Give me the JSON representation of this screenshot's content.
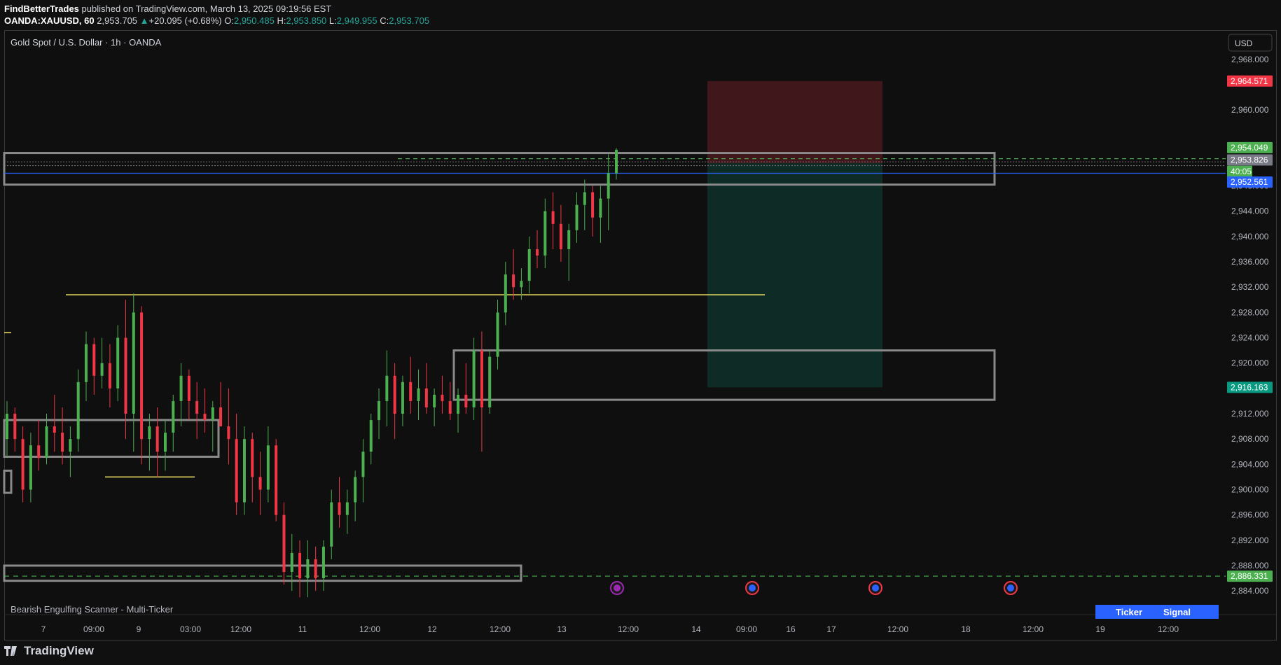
{
  "header": {
    "author": "FindBetterTrades",
    "published": " published on TradingView.com, March 13, 2025 09:19:56 EST",
    "symbol": "OANDA:XAUUSD, 60",
    "last": "2,953.705",
    "change": "+20.095 (+0.68%)",
    "o_label": "O:",
    "o": "2,950.485",
    "h_label": "H:",
    "h": "2,953.850",
    "l_label": "L:",
    "l": "2,949.955",
    "c_label": "C:",
    "c": "2,953.705"
  },
  "chart_data": {
    "type": "candlestick",
    "title": "Gold Spot / U.S. Dollar · 1h · OANDA",
    "currency": "USD",
    "y_ticks": [
      "2,968.000",
      "2,960.000",
      "2,948.000",
      "2,944.000",
      "2,940.000",
      "2,936.000",
      "2,932.000",
      "2,928.000",
      "2,924.000",
      "2,920.000",
      "2,912.000",
      "2,908.000",
      "2,904.000",
      "2,900.000",
      "2,896.000",
      "2,892.000",
      "2,888.000",
      "2,884.000"
    ],
    "ylim": [
      2882.8,
      2972.4
    ],
    "x_ticks": [
      "7",
      "09:00",
      "9",
      "03:00",
      "12:00",
      "11",
      "12:00",
      "12",
      "12:00",
      "13",
      "12:00",
      "14",
      "09:00",
      "16",
      "17",
      "12:00",
      "18",
      "12:00",
      "19",
      "12:00"
    ],
    "price_badges": [
      {
        "text": "2,964.571",
        "color": "#f23645",
        "price": 2964.571
      },
      {
        "text": "2,954.049",
        "color": "#4caf50",
        "price": 2954.049
      },
      {
        "text": "2,953.826",
        "color": "#787b86",
        "price": 2952.1
      },
      {
        "text": "40:05",
        "color": "#4caf50",
        "price": 2950.3
      },
      {
        "text": "2,952.561",
        "color": "#2962ff",
        "price": 2948.6
      },
      {
        "text": "2,916.163",
        "color": "#089981",
        "price": 2916.163
      },
      {
        "text": "2,886.331",
        "color": "#4caf50",
        "price": 2886.331
      }
    ],
    "indicator": {
      "name": "Bearish Engulfing Scanner - Multi-Ticker",
      "table_headers": [
        "Ticker",
        "Signal"
      ]
    },
    "colors": {
      "up": "#4caf50",
      "down": "#f23645",
      "box": "#8a8a8a",
      "level": "#f5e663",
      "price_line": "#2962ff"
    },
    "candles_ohlc": [
      [
        2908,
        2914,
        2905,
        2912
      ],
      [
        2912,
        2913,
        2906,
        2908
      ],
      [
        2908,
        2910,
        2898,
        2900
      ],
      [
        2900,
        2909,
        2898,
        2907
      ],
      [
        2907,
        2911,
        2903,
        2905
      ],
      [
        2905,
        2912,
        2904,
        2910
      ],
      [
        2910,
        2915,
        2906,
        2909
      ],
      [
        2909,
        2913,
        2904,
        2906
      ],
      [
        2906,
        2910,
        2902,
        2908
      ],
      [
        2908,
        2919,
        2906,
        2917
      ],
      [
        2917,
        2925,
        2914,
        2923
      ],
      [
        2923,
        2924,
        2915,
        2918
      ],
      [
        2918,
        2924,
        2916,
        2920
      ],
      [
        2920,
        2923,
        2913,
        2916
      ],
      [
        2916,
        2926,
        2914,
        2924
      ],
      [
        2924,
        2930,
        2908,
        2912
      ],
      [
        2912,
        2931,
        2906,
        2928
      ],
      [
        2928,
        2929,
        2904,
        2908
      ],
      [
        2908,
        2912,
        2903,
        2910
      ],
      [
        2910,
        2913,
        2902,
        2906
      ],
      [
        2906,
        2911,
        2903,
        2909
      ],
      [
        2909,
        2915,
        2906,
        2914
      ],
      [
        2914,
        2920,
        2910,
        2918
      ],
      [
        2918,
        2919,
        2911,
        2914
      ],
      [
        2914,
        2917,
        2908,
        2912
      ],
      [
        2912,
        2916,
        2909,
        2911
      ],
      [
        2911,
        2914,
        2906,
        2913
      ],
      [
        2913,
        2917,
        2910,
        2910
      ],
      [
        2910,
        2916,
        2904,
        2908
      ],
      [
        2908,
        2912,
        2896,
        2898
      ],
      [
        2898,
        2910,
        2896,
        2908
      ],
      [
        2908,
        2909,
        2898,
        2902
      ],
      [
        2902,
        2906,
        2896,
        2900
      ],
      [
        2900,
        2910,
        2898,
        2907
      ],
      [
        2907,
        2908,
        2895,
        2896
      ],
      [
        2896,
        2898,
        2885,
        2887
      ],
      [
        2887,
        2893,
        2884,
        2890
      ],
      [
        2890,
        2892,
        2883,
        2886
      ],
      [
        2886,
        2892,
        2883,
        2889
      ],
      [
        2889,
        2891,
        2884,
        2886
      ],
      [
        2886,
        2892,
        2884,
        2891
      ],
      [
        2891,
        2900,
        2889,
        2898
      ],
      [
        2898,
        2902,
        2894,
        2896
      ],
      [
        2896,
        2900,
        2893,
        2898
      ],
      [
        2898,
        2903,
        2895,
        2902
      ],
      [
        2902,
        2908,
        2898,
        2906
      ],
      [
        2906,
        2912,
        2904,
        2911
      ],
      [
        2911,
        2916,
        2908,
        2914
      ],
      [
        2914,
        2922,
        2910,
        2918
      ],
      [
        2918,
        2920,
        2908,
        2912
      ],
      [
        2912,
        2918,
        2910,
        2917
      ],
      [
        2917,
        2921,
        2912,
        2914
      ],
      [
        2914,
        2919,
        2911,
        2916
      ],
      [
        2916,
        2920,
        2912,
        2913
      ],
      [
        2913,
        2916,
        2910,
        2915
      ],
      [
        2915,
        2918,
        2912,
        2914
      ],
      [
        2914,
        2917,
        2911,
        2912
      ],
      [
        2912,
        2916,
        2909,
        2915
      ],
      [
        2915,
        2920,
        2912,
        2913
      ],
      [
        2913,
        2924,
        2911,
        2922
      ],
      [
        2922,
        2925,
        2906,
        2913
      ],
      [
        2913,
        2922,
        2912,
        2921
      ],
      [
        2921,
        2930,
        2919,
        2928
      ],
      [
        2928,
        2936,
        2926,
        2934
      ],
      [
        2934,
        2938,
        2930,
        2932
      ],
      [
        2932,
        2935,
        2930,
        2933
      ],
      [
        2933,
        2940,
        2931,
        2938
      ],
      [
        2938,
        2941,
        2935,
        2937
      ],
      [
        2937,
        2946,
        2935,
        2944
      ],
      [
        2944,
        2947,
        2938,
        2942
      ],
      [
        2942,
        2945,
        2936,
        2938
      ],
      [
        2938,
        2942,
        2933,
        2941
      ],
      [
        2941,
        2947,
        2939,
        2945
      ],
      [
        2945,
        2949,
        2941,
        2947
      ],
      [
        2947,
        2948,
        2940,
        2943
      ],
      [
        2943,
        2948,
        2939,
        2946
      ],
      [
        2946,
        2953,
        2941,
        2950
      ],
      [
        2950,
        2954,
        2949,
        2953.7
      ]
    ]
  },
  "branding": {
    "logo_text": "TradingView"
  }
}
